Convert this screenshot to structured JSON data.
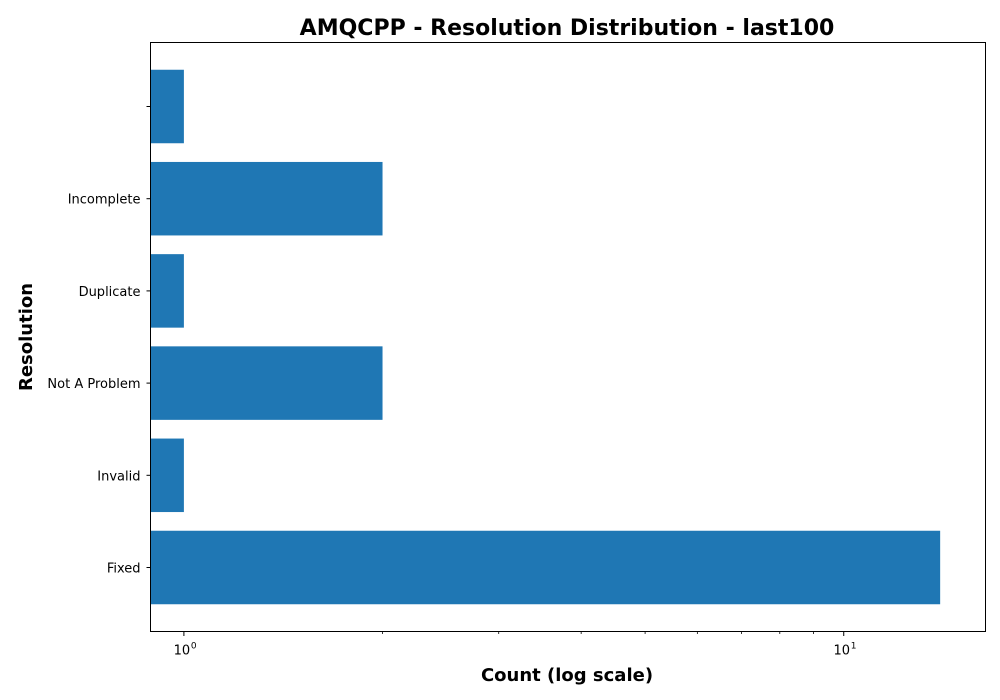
{
  "chart_data": {
    "type": "bar",
    "orientation": "horizontal",
    "title": "AMQCPP - Resolution Distribution - last100",
    "xlabel": "Count (log scale)",
    "ylabel": "Resolution",
    "x_scale": "log",
    "xlim": [
      0.89,
      16.4
    ],
    "x_major_ticks": [
      {
        "value": 1,
        "base": "10",
        "exp": "0"
      },
      {
        "value": 10,
        "base": "10",
        "exp": "1"
      }
    ],
    "x_minor_ticks": [
      2,
      3,
      4,
      5,
      6,
      7,
      8,
      9
    ],
    "categories": [
      "Fixed",
      "Invalid",
      "Not A Problem",
      "Duplicate",
      "Incomplete",
      ""
    ],
    "values": [
      14,
      1,
      2,
      1,
      2,
      1
    ],
    "color": "#1f77b4",
    "grid": false,
    "legend": "none"
  }
}
